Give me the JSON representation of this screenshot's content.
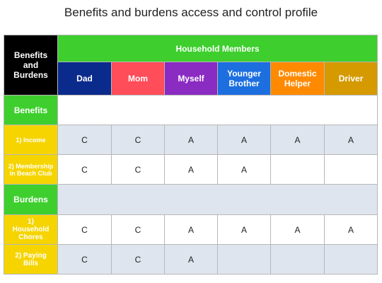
{
  "title": "Benefits and burdens access and control profile",
  "colors": {
    "corner": "#000000",
    "green": "#3ecf2e",
    "yellow": "#f5d400",
    "gray_row": "#dfe5ee",
    "members": [
      "#0a2a8c",
      "#ff4d5a",
      "#8a2bc2",
      "#1d6fe0",
      "#ff8a00",
      "#d49a00"
    ]
  },
  "header": {
    "corner_line1": "Benefits",
    "corner_line2": "and",
    "corner_line3": "Burdens",
    "group_label": "Household Members",
    "members": [
      {
        "line1": "Dad",
        "line2": ""
      },
      {
        "line1": "Mom",
        "line2": ""
      },
      {
        "line1": "Myself",
        "line2": ""
      },
      {
        "line1": "Younger",
        "line2": "Brother"
      },
      {
        "line1": "Domestic",
        "line2": "Helper"
      },
      {
        "line1": "Driver",
        "line2": ""
      }
    ]
  },
  "sections": {
    "benefits_label": "Benefits",
    "burdens_label": "Burdens"
  },
  "rows": {
    "income": {
      "label1": "1) Income",
      "label2": "",
      "values": [
        "C",
        "C",
        "A",
        "A",
        "A",
        "A"
      ]
    },
    "membership": {
      "label1": "2) Membership",
      "label2": "in Beach Club",
      "values": [
        "C",
        "C",
        "A",
        "A",
        "",
        ""
      ]
    },
    "chores": {
      "label1": "1)",
      "label2": "Household",
      "label3": "Chores",
      "values": [
        "C",
        "C",
        "A",
        "A",
        "A",
        "A"
      ]
    },
    "bills": {
      "label1": "2) Paying",
      "label2": "Bills",
      "values": [
        "C",
        "C",
        "A",
        "",
        "",
        ""
      ]
    }
  }
}
